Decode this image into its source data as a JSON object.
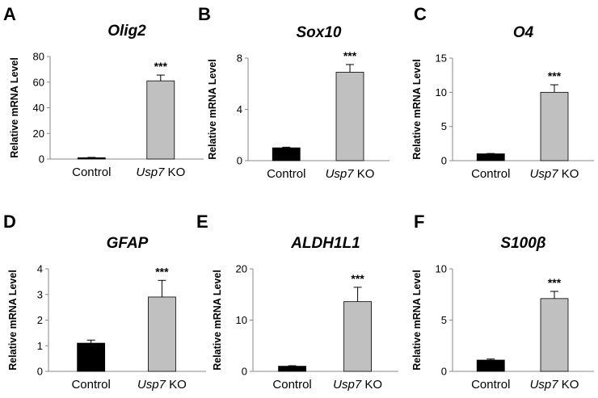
{
  "chart_data": [
    {
      "type": "bar",
      "panel_label": "A",
      "title": "Olig2",
      "ylabel": "Relative mRNA Level",
      "categories": [
        {
          "parts": [
            {
              "text": "Control",
              "italic": false
            }
          ]
        },
        {
          "parts": [
            {
              "text": "Usp7",
              "italic": true
            },
            {
              "text": " KO",
              "italic": false
            }
          ]
        }
      ],
      "values": [
        1,
        61
      ],
      "errors": [
        0.3,
        4.5
      ],
      "bar_colors": [
        "#000000",
        "#c0c0c0"
      ],
      "significance": [
        "",
        "***"
      ],
      "ylim": [
        0,
        80
      ],
      "yticks": [
        0,
        20,
        40,
        60,
        80
      ]
    },
    {
      "type": "bar",
      "panel_label": "B",
      "title": "Sox10",
      "ylabel": "Relative mRNA Level",
      "categories": [
        {
          "parts": [
            {
              "text": "Control",
              "italic": false
            }
          ]
        },
        {
          "parts": [
            {
              "text": "Usp7",
              "italic": true
            },
            {
              "text": " KO",
              "italic": false
            }
          ]
        }
      ],
      "values": [
        1,
        6.9
      ],
      "errors": [
        0.05,
        0.6
      ],
      "bar_colors": [
        "#000000",
        "#c0c0c0"
      ],
      "significance": [
        "",
        "***"
      ],
      "ylim": [
        0,
        8
      ],
      "yticks": [
        0,
        4,
        8
      ]
    },
    {
      "type": "bar",
      "panel_label": "C",
      "title": "O4",
      "ylabel": "Relative mRNA Level",
      "categories": [
        {
          "parts": [
            {
              "text": "Control",
              "italic": false
            }
          ]
        },
        {
          "parts": [
            {
              "text": "Usp7",
              "italic": true
            },
            {
              "text": " KO",
              "italic": false
            }
          ]
        }
      ],
      "values": [
        1,
        10
      ],
      "errors": [
        0.05,
        1.1
      ],
      "bar_colors": [
        "#000000",
        "#c0c0c0"
      ],
      "significance": [
        "",
        "***"
      ],
      "ylim": [
        0,
        15
      ],
      "yticks": [
        0,
        5,
        10,
        15
      ]
    },
    {
      "type": "bar",
      "panel_label": "D",
      "title": "GFAP",
      "ylabel": "Relative mRNA Level",
      "categories": [
        {
          "parts": [
            {
              "text": "Control",
              "italic": false
            }
          ]
        },
        {
          "parts": [
            {
              "text": "Usp7",
              "italic": true
            },
            {
              "text": " KO",
              "italic": false
            }
          ]
        }
      ],
      "values": [
        1.1,
        2.9
      ],
      "errors": [
        0.12,
        0.65
      ],
      "bar_colors": [
        "#000000",
        "#c0c0c0"
      ],
      "significance": [
        "",
        "***"
      ],
      "ylim": [
        0,
        4
      ],
      "yticks": [
        0,
        1,
        2,
        3,
        4
      ]
    },
    {
      "type": "bar",
      "panel_label": "E",
      "title": "ALDH1L1",
      "ylabel": "Relative mRNA Level",
      "categories": [
        {
          "parts": [
            {
              "text": "Control",
              "italic": false
            }
          ]
        },
        {
          "parts": [
            {
              "text": "Usp7",
              "italic": true
            },
            {
              "text": " KO",
              "italic": false
            }
          ]
        }
      ],
      "values": [
        1,
        13.6
      ],
      "errors": [
        0.1,
        2.8
      ],
      "bar_colors": [
        "#000000",
        "#c0c0c0"
      ],
      "significance": [
        "",
        "***"
      ],
      "ylim": [
        0,
        20
      ],
      "yticks": [
        0,
        10,
        20
      ]
    },
    {
      "type": "bar",
      "panel_label": "F",
      "title": "S100β",
      "ylabel": "Relative mRNA Level",
      "categories": [
        {
          "parts": [
            {
              "text": "Control",
              "italic": false
            }
          ]
        },
        {
          "parts": [
            {
              "text": "Usp7",
              "italic": true
            },
            {
              "text": " KO",
              "italic": false
            }
          ]
        }
      ],
      "values": [
        1.1,
        7.1
      ],
      "errors": [
        0.1,
        0.7
      ],
      "bar_colors": [
        "#000000",
        "#c0c0c0"
      ],
      "significance": [
        "",
        "***"
      ],
      "ylim": [
        0,
        10
      ],
      "yticks": [
        0,
        5,
        10
      ]
    }
  ]
}
